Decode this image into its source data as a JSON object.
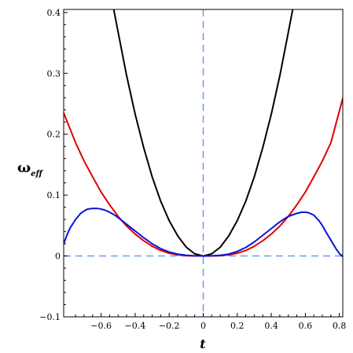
{
  "chart_data": {
    "type": "line",
    "xlabel": "t",
    "ylabel_main": "ω",
    "ylabel_sub": "eff",
    "xlim": [
      -0.82,
      0.82
    ],
    "ylim": [
      -0.1,
      0.405
    ],
    "x_ticks": [
      -0.6,
      -0.4,
      -0.2,
      0,
      0.2,
      0.4,
      0.6,
      0.8
    ],
    "x_tick_labels": [
      "−0.6",
      "−0.4",
      "−0.2",
      "0",
      "0.2",
      "0.4",
      "0.6",
      "0.8"
    ],
    "y_ticks": [
      -0.1,
      0,
      0.1,
      0.2,
      0.3,
      0.4
    ],
    "y_tick_labels": [
      "−0.1",
      "0",
      "0.1",
      "0.2",
      "0.3",
      "0.4"
    ],
    "grid": false,
    "colors": {
      "black_curve": "#000000",
      "red_curve": "#e00000",
      "blue_curve": "#0a14d6",
      "reference_lines": "#6495ed"
    },
    "series": [
      {
        "key": "black",
        "color": "#000000",
        "x": [
          -0.55,
          -0.5,
          -0.45,
          -0.4,
          -0.35,
          -0.3,
          -0.25,
          -0.2,
          -0.15,
          -0.1,
          -0.05,
          0,
          0.05,
          0.1,
          0.15,
          0.2,
          0.25,
          0.3,
          0.35,
          0.4,
          0.45,
          0.5,
          0.55
        ],
        "y": [
          0.44,
          0.3675,
          0.296,
          0.233,
          0.178,
          0.13,
          0.09,
          0.058,
          0.033,
          0.0145,
          0.0035,
          0,
          0.0035,
          0.0145,
          0.033,
          0.058,
          0.09,
          0.13,
          0.178,
          0.233,
          0.296,
          0.3675,
          0.44
        ]
      },
      {
        "key": "red",
        "color": "#e00000",
        "x": [
          -0.82,
          -0.75,
          -0.7,
          -0.65,
          -0.6,
          -0.55,
          -0.5,
          -0.45,
          -0.4,
          -0.35,
          -0.3,
          -0.25,
          -0.2,
          -0.15,
          -0.1,
          -0.05,
          0,
          0.05,
          0.1,
          0.15,
          0.2,
          0.25,
          0.3,
          0.35,
          0.4,
          0.45,
          0.5,
          0.55,
          0.6,
          0.65,
          0.7,
          0.75,
          0.82
        ],
        "y": [
          0.235,
          0.186,
          0.156,
          0.13,
          0.105,
          0.084,
          0.065,
          0.049,
          0.036,
          0.025,
          0.016,
          0.009,
          0.0045,
          0.0018,
          0.0005,
          0.0001,
          0,
          0.0001,
          0.0005,
          0.0018,
          0.0045,
          0.009,
          0.016,
          0.025,
          0.036,
          0.049,
          0.065,
          0.084,
          0.105,
          0.13,
          0.156,
          0.186,
          0.259
        ]
      },
      {
        "key": "blue",
        "color": "#0a14d6",
        "x": [
          -0.82,
          -0.8,
          -0.78,
          -0.75,
          -0.72,
          -0.7,
          -0.68,
          -0.65,
          -0.62,
          -0.6,
          -0.58,
          -0.55,
          -0.52,
          -0.5,
          -0.45,
          -0.4,
          -0.35,
          -0.3,
          -0.25,
          -0.2,
          -0.15,
          -0.1,
          -0.05,
          0,
          0.05,
          0.1,
          0.15,
          0.2,
          0.25,
          0.3,
          0.35,
          0.4,
          0.45,
          0.5,
          0.55,
          0.58,
          0.6,
          0.62,
          0.65,
          0.68,
          0.7,
          0.72,
          0.75,
          0.78,
          0.8,
          0.82
        ],
        "y": [
          0.02,
          0.035,
          0.047,
          0.06,
          0.07,
          0.074,
          0.077,
          0.078,
          0.078,
          0.077,
          0.0755,
          0.072,
          0.067,
          0.063,
          0.052,
          0.041,
          0.03,
          0.02,
          0.012,
          0.0065,
          0.003,
          0.001,
          0.0002,
          0,
          0.0002,
          0.001,
          0.003,
          0.0075,
          0.014,
          0.023,
          0.034,
          0.045,
          0.056,
          0.065,
          0.07,
          0.072,
          0.072,
          0.071,
          0.067,
          0.058,
          0.05,
          0.04,
          0.026,
          0.012,
          0.004,
          -0.001
        ]
      }
    ],
    "reference_lines": [
      {
        "orientation": "horizontal",
        "value": 0,
        "style": "dashed"
      },
      {
        "orientation": "vertical",
        "value": 0,
        "style": "dashed"
      }
    ]
  }
}
